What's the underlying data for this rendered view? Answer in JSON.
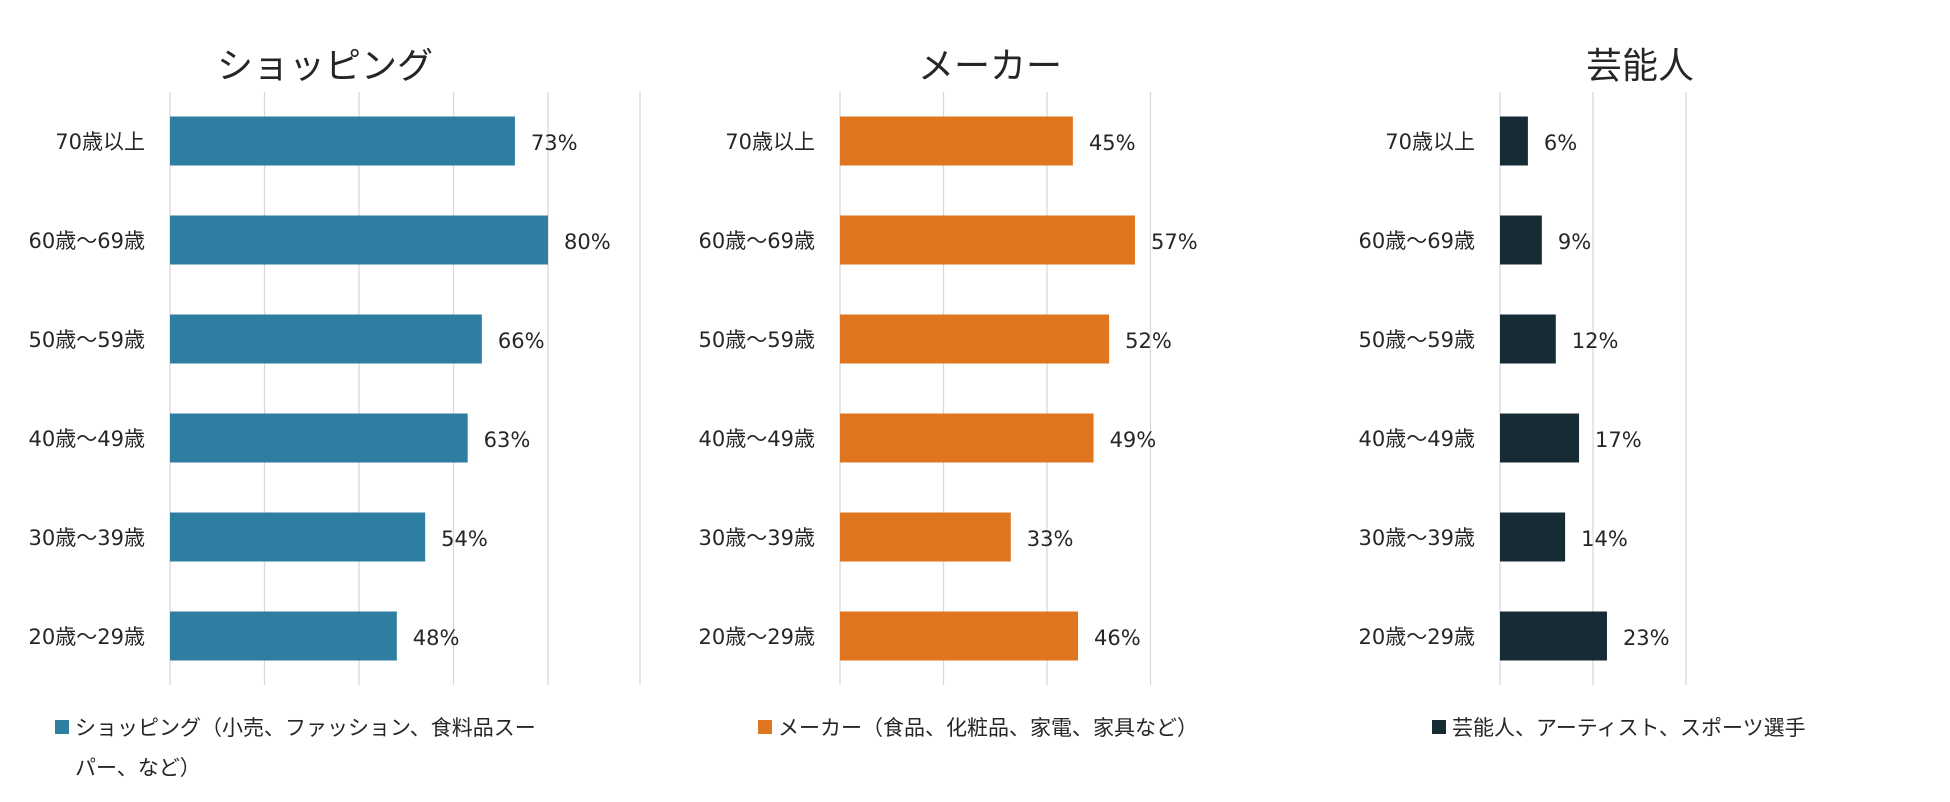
{
  "chart_data": [
    {
      "type": "bar",
      "orientation": "horizontal",
      "title": "ショッピング",
      "categories": [
        "70歳以上",
        "60歳～69歳",
        "50歳～59歳",
        "40歳～49歳",
        "30歳～39歳",
        "20歳～29歳"
      ],
      "values": [
        73,
        80,
        66,
        63,
        54,
        48
      ],
      "value_labels": [
        "73%",
        "80%",
        "66%",
        "63%",
        "54%",
        "48%"
      ],
      "xlim": [
        0,
        80
      ],
      "grid": true,
      "color": "#2e7ea1",
      "legend_lines": [
        "ショッピング（小売、ファッション、食料品スー",
        "パー、など）"
      ]
    },
    {
      "type": "bar",
      "orientation": "horizontal",
      "title": "メーカー",
      "categories": [
        "70歳以上",
        "60歳～69歳",
        "50歳～59歳",
        "40歳～49歳",
        "30歳～39歳",
        "20歳～29歳"
      ],
      "values": [
        45,
        57,
        52,
        49,
        33,
        46
      ],
      "value_labels": [
        "45%",
        "57%",
        "52%",
        "49%",
        "33%",
        "46%"
      ],
      "xlim": [
        0,
        60
      ],
      "grid": true,
      "color": "#e07520",
      "legend_lines": [
        "メーカー（食品、化粧品、家電、家具など）"
      ]
    },
    {
      "type": "bar",
      "orientation": "horizontal",
      "title": "芸能人",
      "categories": [
        "70歳以上",
        "60歳～69歳",
        "50歳～59歳",
        "40歳～49歳",
        "30歳～39歳",
        "20歳～29歳"
      ],
      "values": [
        6,
        9,
        12,
        17,
        14,
        23
      ],
      "value_labels": [
        "6%",
        "9%",
        "12%",
        "17%",
        "14%",
        "23%"
      ],
      "xlim": [
        0,
        40
      ],
      "grid": true,
      "color": "#172b35",
      "legend_lines": [
        "芸能人、アーティスト、スポーツ選手"
      ]
    }
  ]
}
